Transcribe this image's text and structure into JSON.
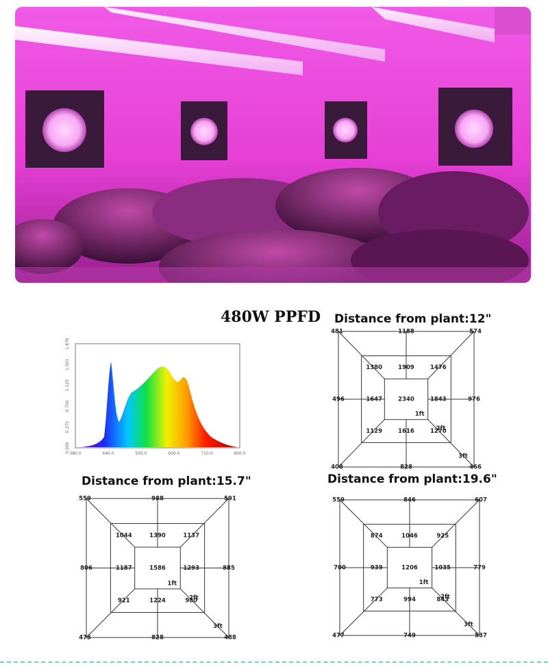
{
  "title": "480W PPFD",
  "spectrum": {
    "x_ticks": [
      "380.0",
      "440.0",
      "500.0",
      "600.0",
      "710.0",
      "800.0"
    ],
    "y_ticks": [
      "0.000",
      "0.375",
      "0.750",
      "1.125",
      "1.501",
      "1.876"
    ]
  },
  "panels": [
    {
      "title": "Distance from plant:12\"",
      "outer": {
        "top_left": "481",
        "top_mid": "1188",
        "top_right": "574",
        "mid_left": "496",
        "mid_right": "976",
        "bottom_left": "408",
        "bottom_mid": "828",
        "bottom_right": "466"
      },
      "middle": {
        "top_left": "1380",
        "top_mid": "1909",
        "top_right": "1476",
        "mid_left": "1647",
        "mid_right": "1843",
        "bottom_left": "1129",
        "bottom_mid": "1616",
        "bottom_right": "1270"
      },
      "center": "2340",
      "ring_labels": [
        "1ft",
        "2ft",
        "3ft"
      ]
    },
    {
      "title": "Distance from plant:15.7\"",
      "outer": {
        "top_left": "559",
        "top_mid": "988",
        "top_right": "591",
        "mid_left": "806",
        "mid_right": "885",
        "bottom_left": "475",
        "bottom_mid": "828",
        "bottom_right": "488"
      },
      "middle": {
        "top_left": "1044",
        "top_mid": "1390",
        "top_right": "1137",
        "mid_left": "1187",
        "mid_right": "1293",
        "bottom_left": "921",
        "bottom_mid": "1224",
        "bottom_right": "980"
      },
      "center": "1586",
      "ring_labels": [
        "1ft",
        "2ft",
        "3ft"
      ]
    },
    {
      "title": "Distance from plant:19.6\"",
      "outer": {
        "top_left": "559",
        "top_mid": "846",
        "top_right": "607",
        "mid_left": "700",
        "mid_right": "779",
        "bottom_left": "477",
        "bottom_mid": "749",
        "bottom_right": "537"
      },
      "middle": {
        "top_left": "874",
        "top_mid": "1046",
        "top_right": "925",
        "mid_left": "939",
        "mid_right": "1035",
        "bottom_left": "773",
        "bottom_mid": "994",
        "bottom_right": "843"
      },
      "center": "1206",
      "ring_labels": [
        "1ft",
        "2ft",
        "3ft"
      ]
    }
  ]
}
